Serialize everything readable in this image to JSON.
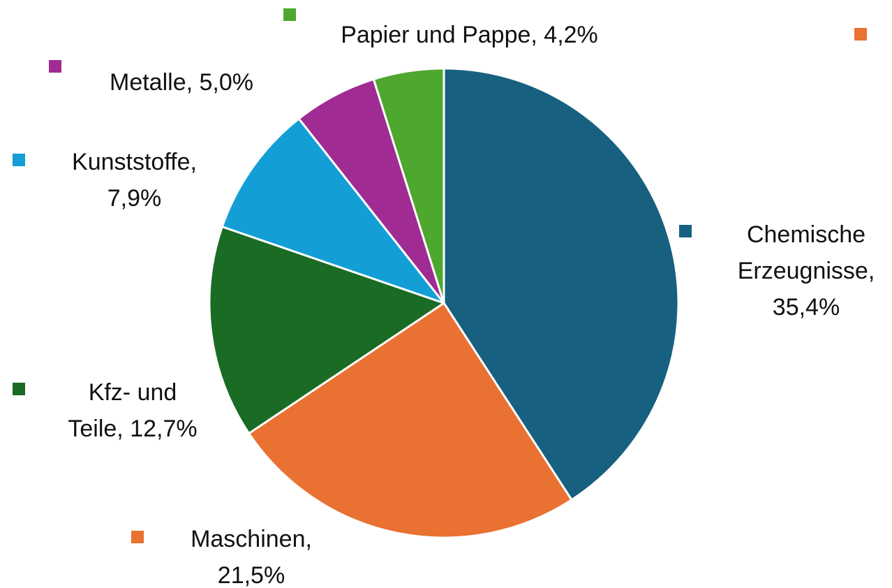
{
  "chart_data": {
    "type": "pie",
    "values": [
      35.4,
      21.5,
      12.7,
      7.9,
      5.0,
      4.2
    ],
    "value_labels": [
      "Chemische Erzeugnisse, 35,4%",
      "Maschinen, 21,5%",
      "Kfz- und Teile, 12,7%",
      "Kunststoffe, 7,9%",
      "Metalle, 5,0%",
      "Papier und Pappe, 4,2%"
    ],
    "colors": [
      "#17607f",
      "#e97132",
      "#1a6b24",
      "#139fd6",
      "#a02b93",
      "#4ea72e"
    ]
  }
}
